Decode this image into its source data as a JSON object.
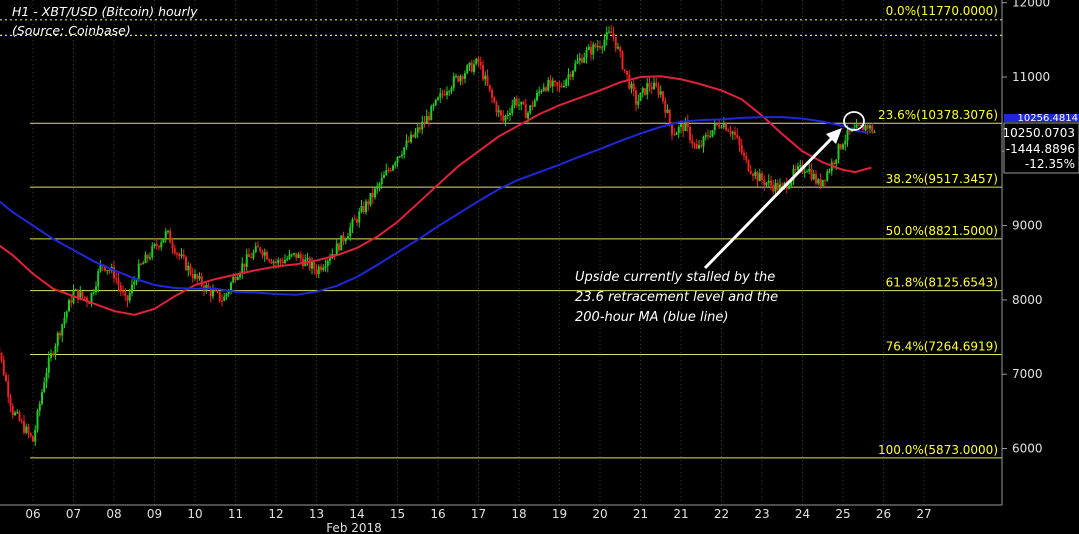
{
  "title": "H1 - XBT/USD (Bitcoin) hourly",
  "subtitle": "(Source: Coinbase)",
  "annotation": {
    "lines": [
      "Upside currently stalled by the",
      "23.6 retracement level and the",
      "200-hour MA (blue line)"
    ]
  },
  "price_box": {
    "last": "10250.0703",
    "change": "-1444.8896",
    "change_pct": "-12.35%",
    "ma_value": "10256.4814"
  },
  "colors": {
    "background": "#000000",
    "up_candle": "#22cc22",
    "down_candle": "#ee2222",
    "ma_fast": "#e0213a",
    "ma_slow": "#1f28d8",
    "fib_lines": "#e0e060",
    "fib_text": "#ffff33",
    "annotation_arrow": "#ffffff"
  },
  "chart_data": {
    "type": "line",
    "x_axis_label": "Feb 2018",
    "x_ticks": [
      "06",
      "07",
      "08",
      "09",
      "10",
      "11",
      "12",
      "13",
      "14",
      "15",
      "16",
      "17",
      "18",
      "19",
      "20",
      "21",
      "21",
      "22",
      "23",
      "24",
      "25",
      "26",
      "27"
    ],
    "y_ticks": [
      "12000",
      "11000",
      "10000",
      "9000",
      "8000",
      "7000",
      "6000"
    ],
    "ylim": [
      5300,
      12050
    ],
    "fib_levels": [
      {
        "label": "0.0%(11770.0000)",
        "value": 11770.0
      },
      {
        "label": "23.6%(10378.3076)",
        "value": 10378.3076
      },
      {
        "label": "38.2%(9517.3457)",
        "value": 9517.3457
      },
      {
        "label": "50.0%(8821.5000)",
        "value": 8821.5
      },
      {
        "label": "61.8%(8125.6543)",
        "value": 8125.6543
      },
      {
        "label": "76.4%(7264.6919)",
        "value": 7264.6919
      },
      {
        "label": "100.0%(5873.0000)",
        "value": 5873.0
      }
    ],
    "horizontal_dotted": [
      11770,
      11560
    ],
    "series": [
      {
        "kind": "close",
        "x": [
          5.0,
          5.5,
          6.0,
          6.3,
          6.6,
          7.0,
          7.4,
          7.7,
          8.0,
          8.3,
          8.6,
          9.0,
          9.3,
          9.6,
          10.0,
          10.4,
          10.7,
          11.0,
          11.3,
          11.6,
          12.0,
          12.5,
          13.0,
          13.5,
          14.0,
          14.5,
          15.0,
          15.4,
          15.8,
          16.2,
          16.6,
          17.0,
          17.3,
          17.6,
          17.9,
          18.2,
          18.6,
          19.0,
          19.3,
          19.6,
          20.0,
          20.3,
          20.6,
          20.9,
          21.2,
          21.5,
          21.8,
          22.1,
          22.4,
          22.7,
          23.0,
          23.3,
          23.6,
          23.9,
          24.2,
          24.5,
          24.8,
          25.1,
          25.4,
          25.7,
          26.0,
          26.2,
          26.4,
          26.6,
          26.8
        ],
        "values": [
          7700,
          6500,
          6100,
          7000,
          7500,
          8100,
          8000,
          8500,
          8350,
          7950,
          8400,
          8700,
          8900,
          8600,
          8300,
          8100,
          8000,
          8350,
          8550,
          8700,
          8500,
          8600,
          8400,
          8700,
          9100,
          9500,
          9950,
          10200,
          10500,
          10850,
          11050,
          11200,
          10750,
          10400,
          10700,
          10500,
          10900,
          10850,
          11100,
          11300,
          11450,
          11600,
          11100,
          10650,
          10900,
          10800,
          10250,
          10350,
          10000,
          10250,
          10400,
          10250,
          9850,
          9650,
          9550,
          9500,
          9700,
          9800,
          9550,
          9800,
          10150,
          10250,
          10300,
          10350,
          10250
        ]
      },
      {
        "kind": "ma",
        "name": "",
        "x": [
          5.0,
          5.5,
          6.0,
          6.5,
          7.0,
          7.5,
          8.0,
          8.5,
          9.0,
          9.5,
          10.0,
          10.5,
          11.0,
          11.5,
          12.0,
          12.5,
          13.0,
          13.5,
          14.0,
          14.5,
          15.0,
          15.5,
          16.0,
          16.5,
          17.0,
          17.5,
          18.0,
          18.5,
          19.0,
          19.5,
          20.0,
          20.5,
          21.0,
          21.5,
          22.0,
          22.5,
          23.0,
          23.5,
          24.0,
          24.5,
          25.0,
          25.5,
          26.0,
          26.3,
          26.7
        ],
        "values": [
          8800,
          8600,
          8350,
          8150,
          8050,
          7950,
          7850,
          7800,
          7880,
          8050,
          8200,
          8280,
          8340,
          8400,
          8450,
          8480,
          8530,
          8600,
          8700,
          8850,
          9050,
          9300,
          9550,
          9800,
          10000,
          10200,
          10350,
          10500,
          10620,
          10720,
          10820,
          10930,
          11000,
          11010,
          10970,
          10900,
          10820,
          10700,
          10480,
          10230,
          10000,
          9850,
          9750,
          9720,
          9780
        ]
      },
      {
        "kind": "ma",
        "name": "",
        "x": [
          4.0,
          4.5,
          5.0,
          5.5,
          6.0,
          6.5,
          7.0,
          7.5,
          8.0,
          8.5,
          9.0,
          9.5,
          10.0,
          10.5,
          11.0,
          11.5,
          12.0,
          12.5,
          13.0,
          13.5,
          14.0,
          14.5,
          15.0,
          15.5,
          16.0,
          16.5,
          17.0,
          17.5,
          18.0,
          18.5,
          19.0,
          19.5,
          20.0,
          20.5,
          21.0,
          21.5,
          22.0,
          22.5,
          23.0,
          23.5,
          24.0,
          24.5,
          25.0,
          25.5,
          26.0,
          26.3,
          26.6
        ],
        "values": [
          9750,
          9600,
          9400,
          9180,
          9000,
          8820,
          8670,
          8520,
          8400,
          8290,
          8200,
          8160,
          8150,
          8150,
          8110,
          8100,
          8080,
          8070,
          8110,
          8190,
          8310,
          8470,
          8640,
          8810,
          8990,
          9160,
          9330,
          9490,
          9620,
          9720,
          9820,
          9930,
          10030,
          10140,
          10240,
          10330,
          10400,
          10420,
          10430,
          10450,
          10460,
          10460,
          10440,
          10400,
          10340,
          10280,
          10250
        ]
      }
    ]
  }
}
